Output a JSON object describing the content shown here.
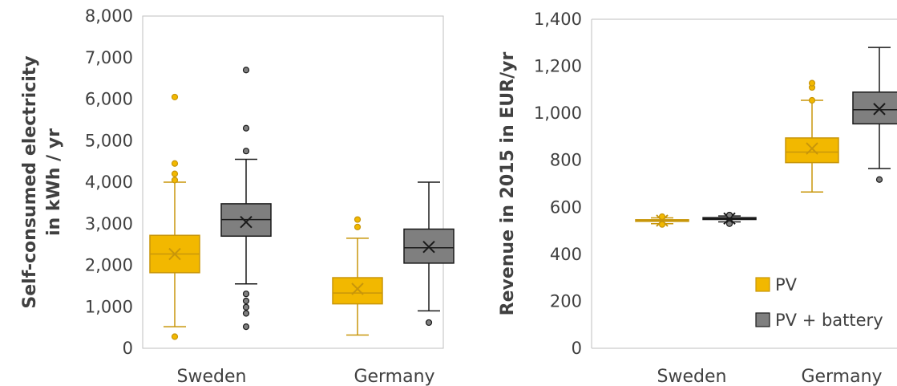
{
  "colors": {
    "pv": "#f2b800",
    "pv_dark": "#c8960a",
    "battery": "#7f7f7f",
    "battery_dark": "#1a1a1a",
    "axis": "#bfbfbf",
    "text": "#404040"
  },
  "chart_data": [
    {
      "type": "box",
      "title": "",
      "ylabel_lines": [
        "Self-consumed electricity",
        "in kWh / yr"
      ],
      "ylim": [
        0,
        8000
      ],
      "yticks": [
        0,
        1000,
        2000,
        3000,
        4000,
        5000,
        6000,
        7000,
        8000
      ],
      "ytick_labels": [
        "0",
        "1,000",
        "2,000",
        "3,000",
        "4,000",
        "5,000",
        "6,000",
        "7,000",
        "8,000"
      ],
      "categories": [
        "Sweden",
        "Germany"
      ],
      "series": [
        {
          "name": "PV",
          "boxes": [
            {
              "category": "Sweden",
              "whisker_low": 520,
              "q1": 1820,
              "median": 2270,
              "q3": 2720,
              "whisker_high": 4000,
              "mean": 2270,
              "outliers": [
                280,
                4050,
                4200,
                4450,
                6050
              ]
            },
            {
              "category": "Germany",
              "whisker_low": 320,
              "q1": 1070,
              "median": 1330,
              "q3": 1700,
              "whisker_high": 2650,
              "mean": 1430,
              "outliers": [
                2920,
                3100
              ]
            }
          ]
        },
        {
          "name": "PV + battery",
          "boxes": [
            {
              "category": "Sweden",
              "whisker_low": 1550,
              "q1": 2700,
              "median": 3100,
              "q3": 3480,
              "whisker_high": 4550,
              "mean": 3040,
              "outliers": [
                520,
                840,
                990,
                1140,
                1310,
                4750,
                5300,
                6700
              ]
            },
            {
              "category": "Germany",
              "whisker_low": 900,
              "q1": 2050,
              "median": 2420,
              "q3": 2870,
              "whisker_high": 4000,
              "mean": 2440,
              "outliers": [
                620
              ]
            }
          ]
        }
      ]
    },
    {
      "type": "box",
      "title": "",
      "ylabel_lines": [
        "Revenue in 2015 in EUR/yr"
      ],
      "ylim": [
        0,
        1400
      ],
      "yticks": [
        0,
        200,
        400,
        600,
        800,
        1000,
        1200,
        1400
      ],
      "ytick_labels": [
        "0",
        "200",
        "400",
        "600",
        "800",
        "1,000",
        "1,200",
        "1,400"
      ],
      "categories": [
        "Sweden",
        "Germany"
      ],
      "legend": {
        "position": "bottom-right",
        "entries": [
          "PV",
          "PV + battery"
        ]
      },
      "series": [
        {
          "name": "PV",
          "boxes": [
            {
              "category": "Sweden",
              "whisker_low": 530,
              "q1": 540,
              "median": 543,
              "q3": 547,
              "whisker_high": 555,
              "mean": 543,
              "outliers": [
                527,
                560
              ]
            },
            {
              "category": "Germany",
              "whisker_low": 665,
              "q1": 790,
              "median": 835,
              "q3": 895,
              "whisker_high": 1055,
              "mean": 850,
              "outliers": [
                1055,
                1110,
                1128
              ]
            }
          ]
        },
        {
          "name": "PV + battery",
          "boxes": [
            {
              "category": "Sweden",
              "whisker_low": 538,
              "q1": 548,
              "median": 552,
              "q3": 556,
              "whisker_high": 563,
              "mean": 552,
              "outliers": [
                530,
                567
              ]
            },
            {
              "category": "Germany",
              "whisker_low": 765,
              "q1": 955,
              "median": 1015,
              "q3": 1090,
              "whisker_high": 1280,
              "mean": 1018,
              "outliers": [
                718
              ]
            }
          ]
        }
      ]
    }
  ]
}
